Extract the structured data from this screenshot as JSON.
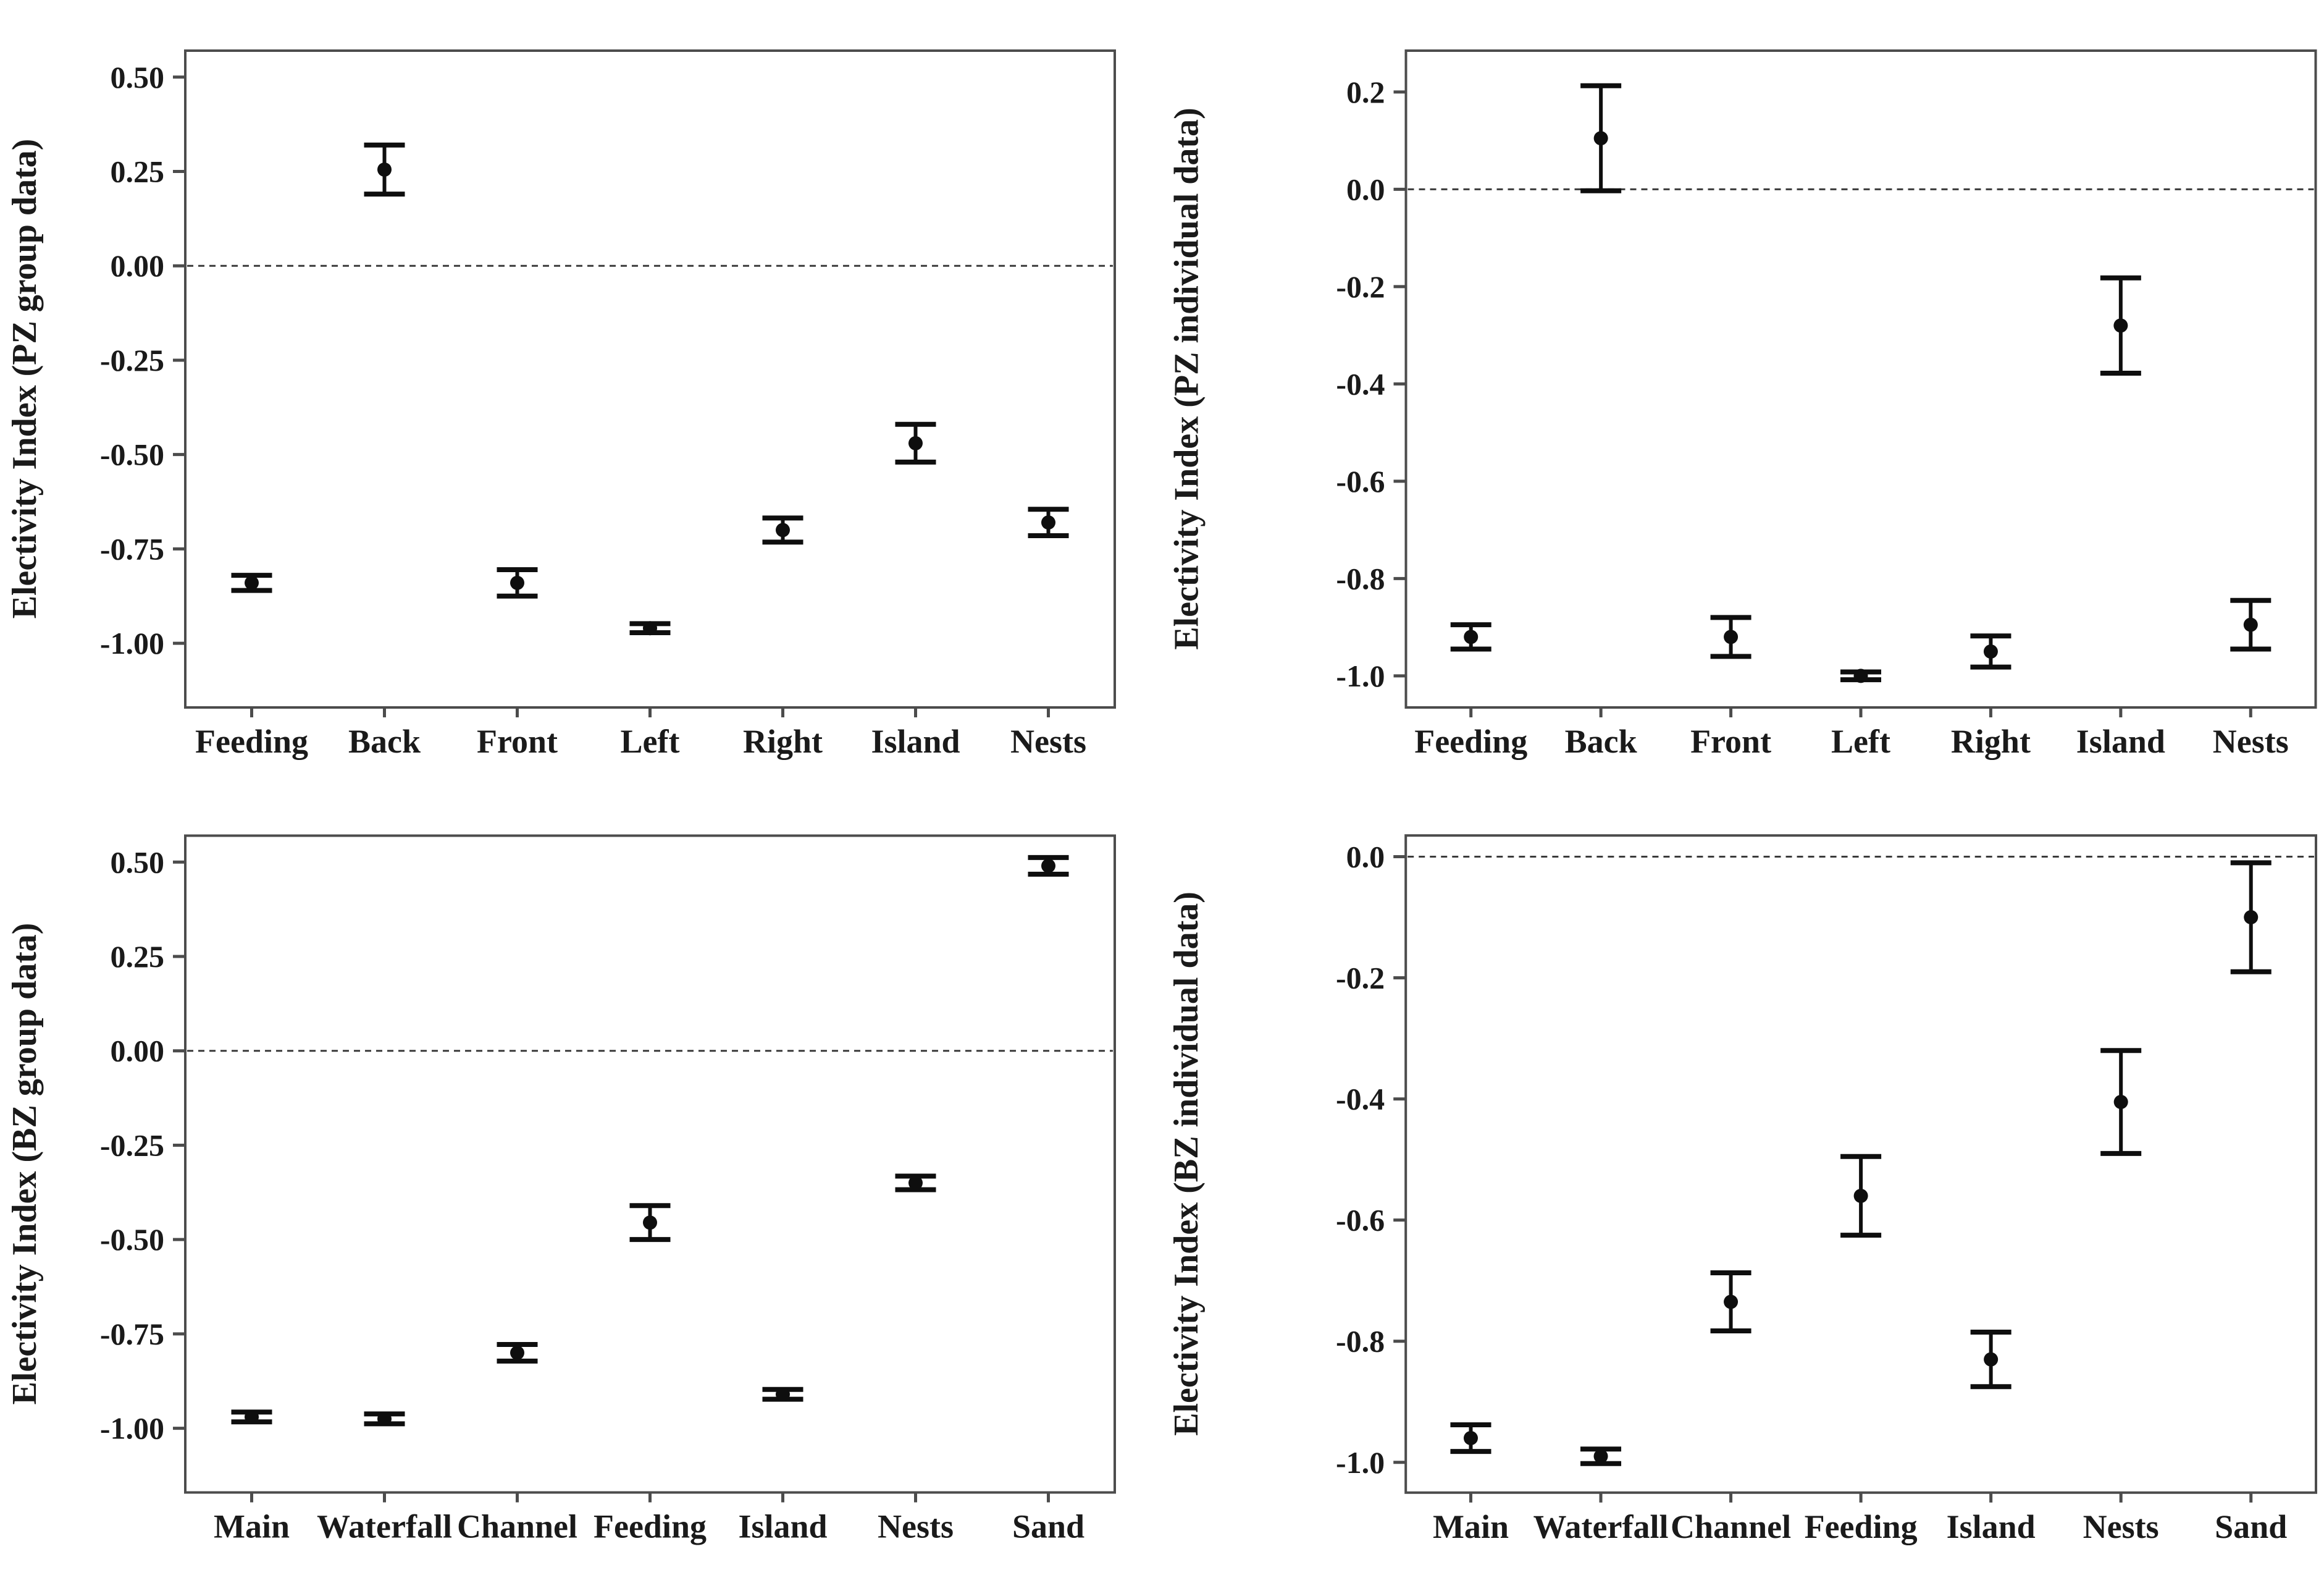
{
  "figure": {
    "background": "#ffffff",
    "description_visible_text_only": ""
  },
  "colors": {
    "axis": "#4c4c4c",
    "text": "#1a1a1a",
    "marker": "#0e0e0e",
    "zero_line": "#3a3a3a",
    "background": "#ffffff"
  },
  "chart_data": [
    {
      "type": "scatter",
      "panel": "top-left",
      "ylabel": "Electivity Index (PZ group data)",
      "categories": [
        "Feeding",
        "Back",
        "Front",
        "Left",
        "Right",
        "Island",
        "Nests"
      ],
      "values": [
        -0.84,
        0.255,
        -0.84,
        -0.96,
        -0.7,
        -0.47,
        -0.68
      ],
      "errors": [
        0.02,
        0.065,
        0.035,
        0.012,
        0.032,
        0.05,
        0.035
      ],
      "ytick_values": [
        0.5,
        0.25,
        0.0,
        -0.25,
        -0.5,
        -0.75,
        -1.0
      ],
      "ytick_labels": [
        "0.50",
        "0.25",
        "0.00",
        "-0.25",
        "-0.50",
        "-0.75",
        "-1.00"
      ],
      "ylim": [
        -1.17,
        0.57
      ],
      "zero_line": true,
      "grid": false,
      "legend": false
    },
    {
      "type": "scatter",
      "panel": "top-right",
      "ylabel": "Electivity Index (PZ individual data)",
      "categories": [
        "Feeding",
        "Back",
        "Front",
        "Left",
        "Right",
        "Island",
        "Nests"
      ],
      "values": [
        -0.92,
        0.105,
        -0.92,
        -1.0,
        -0.95,
        -0.28,
        -0.895
      ],
      "errors": [
        0.025,
        0.108,
        0.04,
        0.008,
        0.032,
        0.098,
        0.05
      ],
      "ytick_values": [
        0.2,
        0.0,
        -0.2,
        -0.4,
        -0.6,
        -0.8,
        -1.0
      ],
      "ytick_labels": [
        "0.2",
        "0.0",
        "-0.2",
        "-0.4",
        "-0.6",
        "-0.8",
        "-1.0"
      ],
      "ylim": [
        -1.065,
        0.285
      ],
      "zero_line": true,
      "grid": false,
      "legend": false
    },
    {
      "type": "scatter",
      "panel": "bottom-left",
      "ylabel": "Electivity Index (BZ group data)",
      "categories": [
        "Main",
        "Waterfall",
        "Channel",
        "Feeding",
        "Island",
        "Nests",
        "Sand"
      ],
      "values": [
        -0.97,
        -0.975,
        -0.8,
        -0.455,
        -0.91,
        -0.35,
        0.49
      ],
      "errors": [
        0.013,
        0.013,
        0.022,
        0.045,
        0.013,
        0.018,
        0.022
      ],
      "ytick_values": [
        0.5,
        0.25,
        0.0,
        -0.25,
        -0.5,
        -0.75,
        -1.0
      ],
      "ytick_labels": [
        "0.50",
        "0.25",
        "0.00",
        "-0.25",
        "-0.50",
        "-0.75",
        "-1.00"
      ],
      "ylim": [
        -1.17,
        0.57
      ],
      "zero_line": true,
      "grid": false,
      "legend": false
    },
    {
      "type": "scatter",
      "panel": "bottom-right",
      "ylabel": "Electivity Index (BZ individual data)",
      "categories": [
        "Main",
        "Waterfall",
        "Channel",
        "Feeding",
        "Island",
        "Nests",
        "Sand"
      ],
      "values": [
        -0.96,
        -0.99,
        -0.735,
        -0.56,
        -0.83,
        -0.405,
        -0.1
      ],
      "errors": [
        0.022,
        0.012,
        0.048,
        0.065,
        0.045,
        0.085,
        0.09
      ],
      "ytick_values": [
        0.0,
        -0.2,
        -0.4,
        -0.6,
        -0.8,
        -1.0
      ],
      "ytick_labels": [
        "0.0",
        "-0.2",
        "-0.4",
        "-0.6",
        "-0.8",
        "-1.0"
      ],
      "ylim": [
        -1.05,
        0.035
      ],
      "zero_line": true,
      "grid": false,
      "legend": false
    }
  ]
}
